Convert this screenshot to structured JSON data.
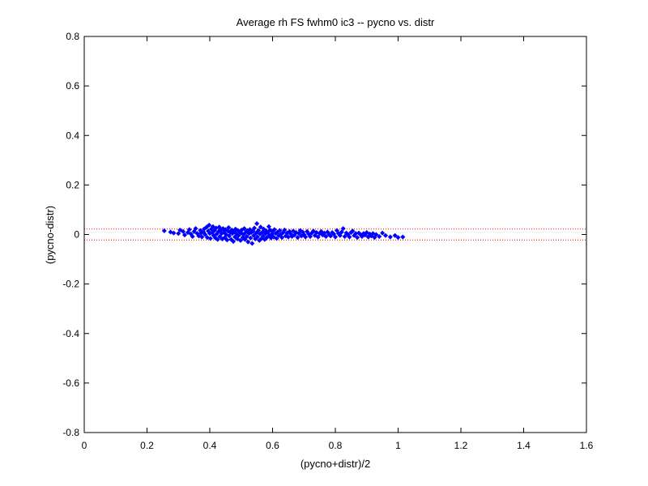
{
  "chart_data": {
    "type": "scatter",
    "title": "Average rh FS fwhm0 ic3 -- pycno vs. distr",
    "xlabel": "(pycno+distr)/2",
    "ylabel": "(pycno-distr)",
    "xlim": [
      0,
      1.6
    ],
    "ylim": [
      -0.8,
      0.8
    ],
    "xticks": [
      "0",
      "0.2",
      "0.4",
      "0.6",
      "0.8",
      "1",
      "1.2",
      "1.4",
      "1.6"
    ],
    "yticks": [
      "-0.8",
      "-0.6",
      "-0.4",
      "-0.2",
      "0",
      "0.2",
      "0.4",
      "0.6",
      "0.8"
    ],
    "grid": false,
    "marker_color": "#0000ff",
    "reference_lines": {
      "values": [
        0.022,
        -0.022
      ],
      "color": "#ff0000",
      "style": "dotted"
    },
    "series": [
      {
        "points": [
          [
            0.255,
            0.015
          ],
          [
            0.275,
            0.01
          ],
          [
            0.285,
            0.006
          ],
          [
            0.3,
            0.004
          ],
          [
            0.305,
            0.018
          ],
          [
            0.315,
            0.012
          ],
          [
            0.32,
            -0.002
          ],
          [
            0.33,
            0.008
          ],
          [
            0.335,
            0.02
          ],
          [
            0.34,
            0.002
          ],
          [
            0.345,
            -0.008
          ],
          [
            0.35,
            0.012
          ],
          [
            0.355,
            0.024
          ],
          [
            0.36,
            0.004
          ],
          [
            0.365,
            -0.006
          ],
          [
            0.37,
            0.016
          ],
          [
            0.372,
            0.006
          ],
          [
            0.375,
            -0.01
          ],
          [
            0.38,
            0.01
          ],
          [
            0.382,
            0.022
          ],
          [
            0.385,
            0.0
          ],
          [
            0.39,
            0.03
          ],
          [
            0.392,
            -0.012
          ],
          [
            0.395,
            0.014
          ],
          [
            0.398,
            0.038
          ],
          [
            0.4,
            0.004
          ],
          [
            0.402,
            -0.016
          ],
          [
            0.405,
            0.022
          ],
          [
            0.408,
            0.008
          ],
          [
            0.41,
            0.032
          ],
          [
            0.412,
            -0.004
          ],
          [
            0.415,
            0.016
          ],
          [
            0.418,
            -0.014
          ],
          [
            0.42,
            0.026
          ],
          [
            0.422,
            0.002
          ],
          [
            0.425,
            -0.02
          ],
          [
            0.428,
            0.012
          ],
          [
            0.43,
            0.03
          ],
          [
            0.432,
            -0.008
          ],
          [
            0.435,
            0.018
          ],
          [
            0.438,
            0.004
          ],
          [
            0.44,
            -0.018
          ],
          [
            0.442,
            0.024
          ],
          [
            0.445,
            0.01
          ],
          [
            0.448,
            -0.012
          ],
          [
            0.45,
            0.02
          ],
          [
            0.452,
            0.0
          ],
          [
            0.455,
            -0.022
          ],
          [
            0.458,
            0.014
          ],
          [
            0.46,
            0.028
          ],
          [
            0.462,
            -0.006
          ],
          [
            0.465,
            0.008
          ],
          [
            0.468,
            -0.02
          ],
          [
            0.47,
            0.018
          ],
          [
            0.472,
            0.004
          ],
          [
            0.475,
            -0.028
          ],
          [
            0.478,
            0.012
          ],
          [
            0.48,
            -0.01
          ],
          [
            0.482,
            0.022
          ],
          [
            0.485,
            0.002
          ],
          [
            0.488,
            -0.018
          ],
          [
            0.49,
            0.016
          ],
          [
            0.492,
            -0.004
          ],
          [
            0.495,
            0.01
          ],
          [
            0.498,
            -0.024
          ],
          [
            0.5,
            0.006
          ],
          [
            0.502,
            0.018
          ],
          [
            0.505,
            -0.012
          ],
          [
            0.508,
            0.0
          ],
          [
            0.51,
            0.024
          ],
          [
            0.512,
            -0.02
          ],
          [
            0.515,
            0.01
          ],
          [
            0.518,
            -0.008
          ],
          [
            0.52,
            0.016
          ],
          [
            0.522,
            -0.03
          ],
          [
            0.525,
            0.004
          ],
          [
            0.528,
            0.02
          ],
          [
            0.53,
            -0.014
          ],
          [
            0.532,
            0.008
          ],
          [
            0.535,
            -0.036
          ],
          [
            0.538,
            0.014
          ],
          [
            0.54,
            -0.004
          ],
          [
            0.542,
            0.026
          ],
          [
            0.545,
            -0.018
          ],
          [
            0.548,
            0.006
          ],
          [
            0.55,
            0.044
          ],
          [
            0.552,
            -0.01
          ],
          [
            0.555,
            0.016
          ],
          [
            0.558,
            -0.024
          ],
          [
            0.56,
            0.002
          ],
          [
            0.562,
            0.03
          ],
          [
            0.565,
            -0.016
          ],
          [
            0.568,
            0.01
          ],
          [
            0.57,
            -0.006
          ],
          [
            0.572,
            0.022
          ],
          [
            0.575,
            -0.02
          ],
          [
            0.578,
            0.004
          ],
          [
            0.58,
            0.014
          ],
          [
            0.582,
            -0.012
          ],
          [
            0.585,
            0.008
          ],
          [
            0.588,
            0.032
          ],
          [
            0.59,
            -0.004
          ],
          [
            0.592,
            0.018
          ],
          [
            0.595,
            -0.014
          ],
          [
            0.598,
            0.002
          ],
          [
            0.6,
            0.012
          ],
          [
            0.603,
            -0.01
          ],
          [
            0.606,
            0.02
          ],
          [
            0.61,
            0.004
          ],
          [
            0.613,
            -0.016
          ],
          [
            0.616,
            0.01
          ],
          [
            0.62,
            -0.004
          ],
          [
            0.623,
            0.016
          ],
          [
            0.626,
            0.0
          ],
          [
            0.63,
            -0.012
          ],
          [
            0.634,
            0.008
          ],
          [
            0.638,
            0.018
          ],
          [
            0.642,
            -0.006
          ],
          [
            0.646,
            0.006
          ],
          [
            0.65,
            -0.01
          ],
          [
            0.654,
            0.012
          ],
          [
            0.658,
            0.002
          ],
          [
            0.662,
            -0.008
          ],
          [
            0.666,
            0.014
          ],
          [
            0.67,
            -0.002
          ],
          [
            0.675,
            0.008
          ],
          [
            0.68,
            -0.012
          ],
          [
            0.684,
            0.004
          ],
          [
            0.688,
            0.016
          ],
          [
            0.692,
            -0.006
          ],
          [
            0.696,
            0.01
          ],
          [
            0.7,
            0.0
          ],
          [
            0.705,
            -0.01
          ],
          [
            0.71,
            0.012
          ],
          [
            0.715,
            0.002
          ],
          [
            0.72,
            -0.008
          ],
          [
            0.725,
            0.006
          ],
          [
            0.73,
            0.014
          ],
          [
            0.735,
            -0.004
          ],
          [
            0.74,
            0.008
          ],
          [
            0.745,
            -0.01
          ],
          [
            0.75,
            0.004
          ],
          [
            0.755,
            0.012
          ],
          [
            0.76,
            -0.002
          ],
          [
            0.765,
            0.006
          ],
          [
            0.77,
            -0.008
          ],
          [
            0.775,
            0.01
          ],
          [
            0.78,
            0.0
          ],
          [
            0.785,
            -0.006
          ],
          [
            0.79,
            0.008
          ],
          [
            0.795,
            0.002
          ],
          [
            0.8,
            -0.01
          ],
          [
            0.805,
            0.016
          ],
          [
            0.81,
            0.004
          ],
          [
            0.815,
            -0.004
          ],
          [
            0.82,
            0.01
          ],
          [
            0.825,
            0.024
          ],
          [
            0.83,
            -0.008
          ],
          [
            0.835,
            0.006
          ],
          [
            0.84,
            0.0
          ],
          [
            0.845,
            -0.01
          ],
          [
            0.85,
            0.008
          ],
          [
            0.855,
            0.014
          ],
          [
            0.86,
            -0.004
          ],
          [
            0.865,
            0.004
          ],
          [
            0.87,
            -0.012
          ],
          [
            0.875,
            0.006
          ],
          [
            0.88,
            0.0
          ],
          [
            0.885,
            -0.008
          ],
          [
            0.89,
            0.004
          ],
          [
            0.895,
            -0.002
          ],
          [
            0.9,
            0.008
          ],
          [
            0.905,
            -0.01
          ],
          [
            0.91,
            0.002
          ],
          [
            0.915,
            -0.006
          ],
          [
            0.92,
            0.004
          ],
          [
            0.925,
            -0.012
          ],
          [
            0.93,
            0.0
          ],
          [
            0.94,
            -0.008
          ],
          [
            0.95,
            0.006
          ],
          [
            0.96,
            -0.004
          ],
          [
            0.975,
            -0.01
          ],
          [
            0.99,
            -0.004
          ],
          [
            1.0,
            -0.012
          ],
          [
            1.015,
            -0.01
          ]
        ]
      }
    ]
  }
}
